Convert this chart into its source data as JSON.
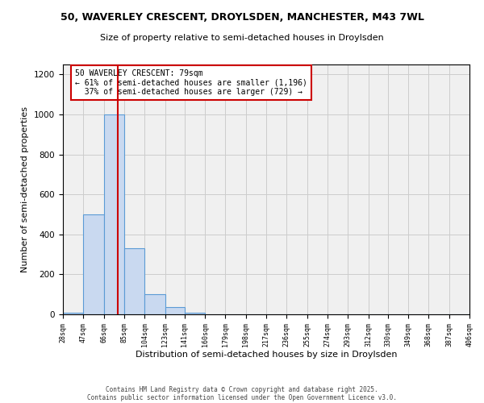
{
  "title1": "50, WAVERLEY CRESCENT, DROYLSDEN, MANCHESTER, M43 7WL",
  "title2": "Size of property relative to semi-detached houses in Droylsden",
  "xlabel": "Distribution of semi-detached houses by size in Droylsden",
  "ylabel": "Number of semi-detached properties",
  "bar_edges": [
    28,
    47,
    66,
    85,
    104,
    123,
    141,
    160,
    179,
    198,
    217,
    236,
    255,
    274,
    293,
    312,
    330,
    349,
    368,
    387,
    406
  ],
  "bar_heights": [
    10,
    500,
    1000,
    330,
    100,
    35,
    10,
    0,
    0,
    0,
    0,
    0,
    0,
    0,
    0,
    0,
    0,
    0,
    0,
    0
  ],
  "bar_facecolor": "#c9d9f0",
  "bar_edgecolor": "#5b9bd5",
  "property_size": 79,
  "vline_color": "#cc0000",
  "annotation_text": "50 WAVERLEY CRESCENT: 79sqm\n← 61% of semi-detached houses are smaller (1,196)\n  37% of semi-detached houses are larger (729) →",
  "annotation_box_edgecolor": "#cc0000",
  "annotation_box_facecolor": "#ffffff",
  "ylim": [
    0,
    1250
  ],
  "yticks": [
    0,
    200,
    400,
    600,
    800,
    1000,
    1200
  ],
  "grid_color": "#cccccc",
  "bg_color": "#f0f0f0",
  "footer1": "Contains HM Land Registry data © Crown copyright and database right 2025.",
  "footer2": "Contains public sector information licensed under the Open Government Licence v3.0.",
  "title1_fontsize": 9,
  "title2_fontsize": 8,
  "tick_labels": [
    "28sqm",
    "47sqm",
    "66sqm",
    "85sqm",
    "104sqm",
    "123sqm",
    "141sqm",
    "160sqm",
    "179sqm",
    "198sqm",
    "217sqm",
    "236sqm",
    "255sqm",
    "274sqm",
    "293sqm",
    "312sqm",
    "330sqm",
    "349sqm",
    "368sqm",
    "387sqm",
    "406sqm"
  ]
}
